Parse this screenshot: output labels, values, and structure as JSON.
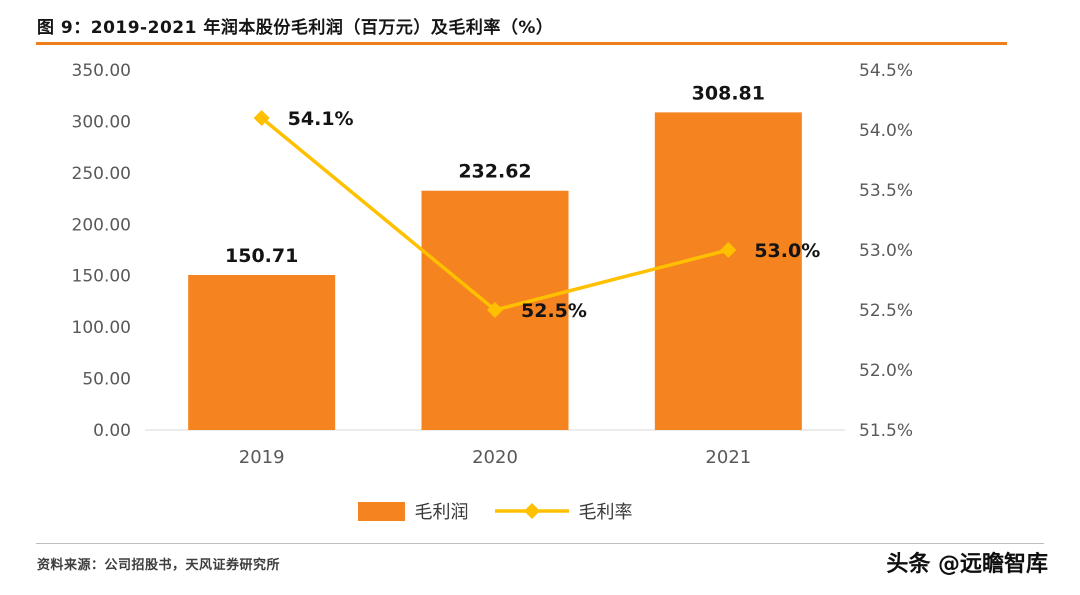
{
  "header": {
    "title": "图 9：2019-2021 年润本股份毛利润（百万元）及毛利率（%）"
  },
  "footer": {
    "source": "资料来源：公司招股书，天风证券研究所",
    "watermark": "头条 @远瞻智库"
  },
  "colors": {
    "accent": "#ef7f1a",
    "bar": "#f5831f",
    "line": "#ffc000",
    "axis_text": "#595959",
    "label_text": "#141414"
  },
  "chart_data": {
    "type": "bar",
    "subtype": "bar+line combo, dual axis",
    "title": "图 9：2019-2021 年润本股份毛利润（百万元）及毛利率（%）",
    "categories": [
      "2019",
      "2020",
      "2021"
    ],
    "series": [
      {
        "name": "毛利润",
        "type": "bar",
        "axis": "left",
        "color": "#f5831f",
        "values": [
          150.71,
          232.62,
          308.81
        ],
        "labels": [
          "150.71",
          "232.62",
          "308.81"
        ]
      },
      {
        "name": "毛利率",
        "type": "line",
        "axis": "right",
        "color": "#ffc000",
        "marker": "diamond",
        "values": [
          54.1,
          52.5,
          53.0
        ],
        "labels": [
          "54.1%",
          "52.5%",
          "53.0%"
        ]
      }
    ],
    "left_axis": {
      "min": 0,
      "max": 350,
      "step": 50,
      "ticks": [
        "350.00",
        "300.00",
        "250.00",
        "200.00",
        "150.00",
        "100.00",
        "50.00",
        "0.00"
      ]
    },
    "right_axis": {
      "min": 51.5,
      "max": 54.5,
      "step": 0.5,
      "ticks": [
        "54.5%",
        "54.0%",
        "53.5%",
        "53.0%",
        "52.5%",
        "52.0%",
        "51.5%"
      ]
    },
    "grid": "off",
    "legend_position": "bottom"
  }
}
